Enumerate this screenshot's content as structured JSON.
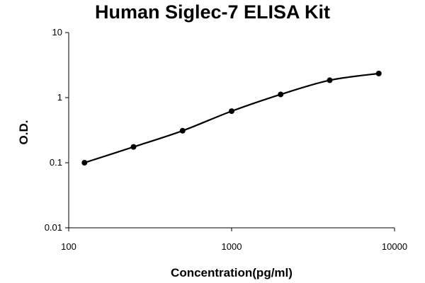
{
  "chart_data": {
    "type": "line",
    "title": "Human Siglec-7 ELISA Kit",
    "xlabel": "Concentration(pg/ml)",
    "ylabel": "O.D.",
    "xscale": "log",
    "yscale": "log",
    "xlim": [
      100,
      10000
    ],
    "ylim": [
      0.01,
      10
    ],
    "x_ticks": [
      "100",
      "1000",
      "10000"
    ],
    "y_ticks": [
      "0.01",
      "0.1",
      "1",
      "10"
    ],
    "grid": false,
    "series": [
      {
        "x": [
          125,
          250,
          500,
          1000,
          2000,
          4000,
          8000
        ],
        "y": [
          0.1,
          0.175,
          0.31,
          0.62,
          1.12,
          1.85,
          2.35
        ],
        "line": "smooth",
        "color": "#000000"
      }
    ]
  }
}
